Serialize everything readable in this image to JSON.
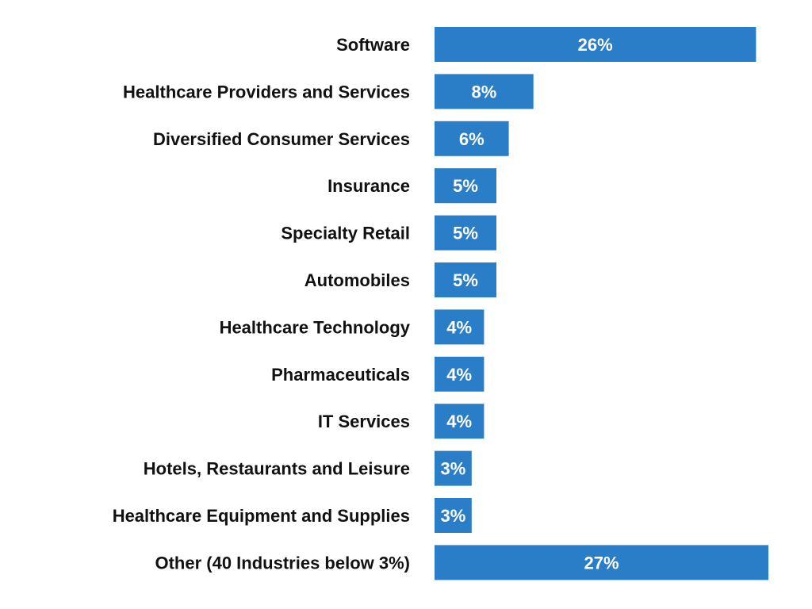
{
  "chart_data": {
    "type": "bar",
    "orientation": "horizontal",
    "categories": [
      "Software",
      "Healthcare Providers and Services",
      "Diversified Consumer Services",
      "Insurance",
      "Specialty Retail",
      "Automobiles",
      "Healthcare Technology",
      "Pharmaceuticals",
      "IT Services",
      "Hotels, Restaurants and Leisure",
      "Healthcare Equipment and Supplies",
      "Other (40 Industries below 3%)"
    ],
    "values": [
      26,
      8,
      6,
      5,
      5,
      5,
      4,
      4,
      4,
      3,
      3,
      27
    ],
    "value_labels": [
      "26%",
      "8%",
      "6%",
      "5%",
      "5%",
      "5%",
      "4%",
      "4%",
      "4%",
      "3%",
      "3%",
      "27%"
    ],
    "unit": "%",
    "xlim": [
      0,
      27
    ],
    "grid": false,
    "legend": "none",
    "bar_color": "#2a7dc7",
    "label_color": "#111111",
    "value_label_color": "#ffffff"
  }
}
